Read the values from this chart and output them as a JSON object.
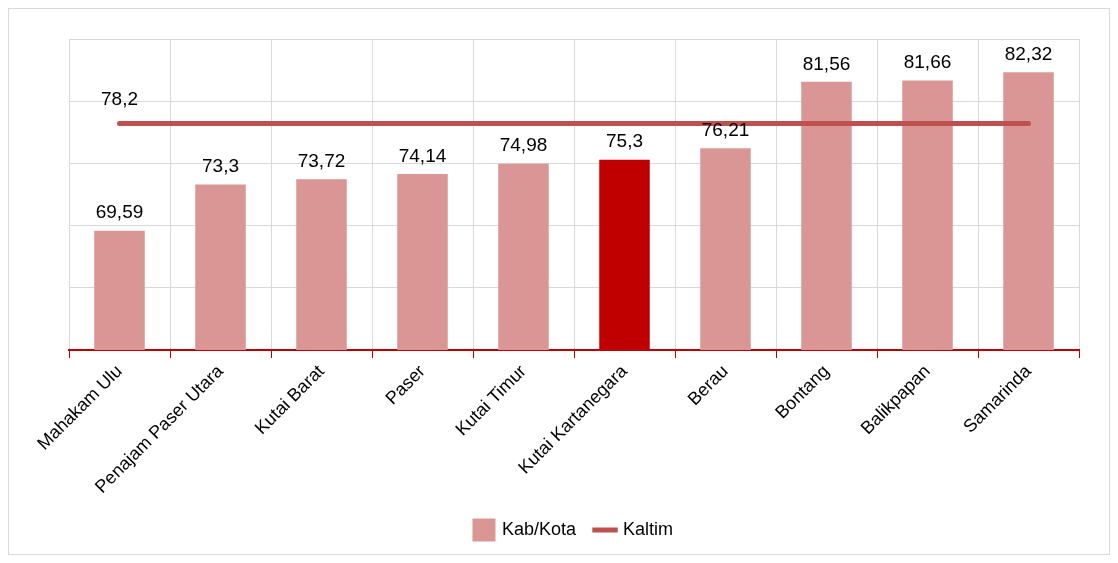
{
  "chart_data": {
    "type": "bar",
    "categories": [
      "Mahakam Ulu",
      "Penajam Paser Utara",
      "Kutai Barat",
      "Paser",
      "Kutai Timur",
      "Kutai Kartanegara",
      "Berau",
      "Bontang",
      "Balikpapan",
      "Samarinda"
    ],
    "series": [
      {
        "name": "Kab/Kota",
        "color": "#d99694",
        "colors": [
          "#d99694",
          "#d99694",
          "#d99694",
          "#d99694",
          "#d99694",
          "#c00000",
          "#d99694",
          "#d99694",
          "#d99694",
          "#d99694"
        ],
        "values": [
          69.59,
          73.3,
          73.72,
          74.14,
          74.98,
          75.3,
          76.21,
          81.56,
          81.66,
          82.32
        ],
        "value_labels": [
          "69,59",
          "73,3",
          "73,72",
          "74,14",
          "74,98",
          "75,3",
          "76,21",
          "81,56",
          "81,66",
          "82,32"
        ]
      },
      {
        "name": "Kaltim",
        "type": "line",
        "color": "#c0504d",
        "values": [
          78.2,
          78.2,
          78.2,
          78.2,
          78.2,
          78.2,
          78.2,
          78.2,
          78.2,
          78.2
        ],
        "value_labels": [
          "78,2",
          null,
          null,
          null,
          null,
          null,
          null,
          null,
          null,
          null
        ]
      }
    ],
    "ylim": [
      60,
      85
    ],
    "yticks": [
      {
        "value": 60,
        "label": null
      },
      {
        "value": 65,
        "label": null
      },
      {
        "value": 70,
        "label": null
      },
      {
        "value": 75,
        "label": null
      },
      {
        "value": 80,
        "label": null
      },
      {
        "value": 85,
        "label": null
      }
    ],
    "tick_labels": "x",
    "grid": true,
    "legend": "bottom",
    "marker": "none"
  }
}
